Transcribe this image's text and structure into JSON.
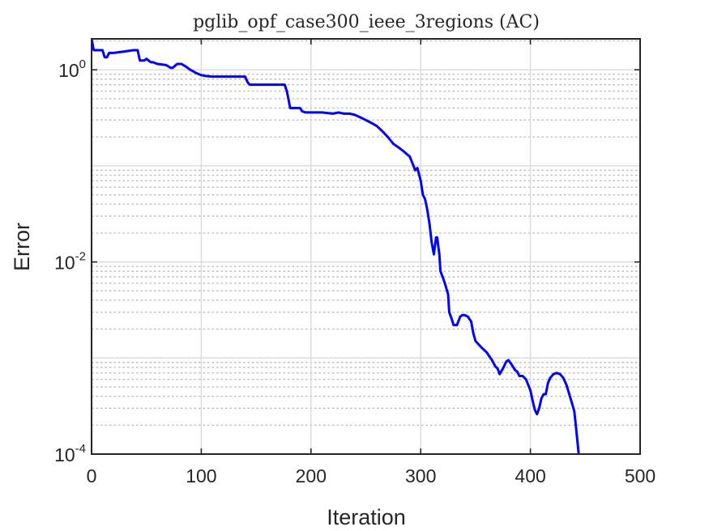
{
  "chart_data": {
    "type": "line",
    "title": "pglib_opf_case300_ieee_3regions (AC)",
    "xlabel": "Iteration",
    "ylabel": "Error",
    "xlim": [
      0,
      500
    ],
    "ylim": [
      0.0001,
      2.1
    ],
    "yscale": "log",
    "grid": true,
    "minor_grid": true,
    "xticks": [
      0,
      100,
      200,
      300,
      400,
      500
    ],
    "xtick_labels": [
      "0",
      "100",
      "200",
      "300",
      "400",
      "500"
    ],
    "yticks": [
      0.0001,
      0.01,
      1
    ],
    "ytick_labels": [
      {
        "base": "10",
        "exp": "-4"
      },
      {
        "base": "10",
        "exp": "-2"
      },
      {
        "base": "10",
        "exp": "0"
      }
    ],
    "series": [
      {
        "color": "#0000ff",
        "x": [
          0,
          2,
          4,
          10,
          12,
          14,
          16,
          18,
          20,
          30,
          38,
          40,
          42,
          44,
          46,
          48,
          50,
          52,
          54,
          56,
          60,
          68,
          72,
          74,
          76,
          78,
          82,
          86,
          90,
          95,
          100,
          105,
          110,
          120,
          130,
          140,
          142,
          144,
          146,
          150,
          160,
          170,
          176,
          178,
          180,
          181,
          185,
          190,
          192,
          195,
          200,
          210,
          220,
          225,
          230,
          235,
          240,
          245,
          250,
          255,
          260,
          265,
          270,
          275,
          280,
          285,
          290,
          292,
          295,
          297,
          300,
          302,
          304,
          306,
          308,
          310,
          312,
          314,
          315,
          317,
          318,
          320,
          322,
          325,
          326,
          328,
          330,
          333,
          336,
          338,
          340,
          343,
          346,
          348,
          350,
          355,
          360,
          365,
          368,
          370,
          372,
          375,
          378,
          380,
          383,
          386,
          388,
          390,
          393,
          396,
          400,
          402,
          404,
          406,
          408,
          410,
          412,
          414,
          416,
          418,
          421,
          424,
          427,
          430,
          433,
          436,
          440,
          442,
          444
        ],
        "y": [
          2.1,
          1.6,
          1.6,
          1.6,
          1.35,
          1.35,
          1.5,
          1.5,
          1.5,
          1.55,
          1.6,
          1.6,
          1.6,
          1.25,
          1.25,
          1.25,
          1.3,
          1.25,
          1.2,
          1.2,
          1.15,
          1.12,
          1.05,
          1.05,
          1.1,
          1.15,
          1.15,
          1.08,
          1.0,
          0.93,
          0.88,
          0.86,
          0.85,
          0.85,
          0.85,
          0.85,
          0.75,
          0.7,
          0.7,
          0.7,
          0.7,
          0.7,
          0.7,
          0.6,
          0.46,
          0.4,
          0.4,
          0.4,
          0.37,
          0.36,
          0.36,
          0.36,
          0.35,
          0.36,
          0.35,
          0.35,
          0.34,
          0.32,
          0.3,
          0.28,
          0.26,
          0.23,
          0.2,
          0.17,
          0.155,
          0.14,
          0.125,
          0.11,
          0.09,
          0.095,
          0.07,
          0.05,
          0.045,
          0.035,
          0.025,
          0.016,
          0.012,
          0.018,
          0.018,
          0.012,
          0.008,
          0.007,
          0.006,
          0.0046,
          0.003,
          0.0026,
          0.0022,
          0.0022,
          0.0027,
          0.0028,
          0.0028,
          0.0027,
          0.0024,
          0.0018,
          0.0015,
          0.0013,
          0.00115,
          0.00095,
          0.00082,
          0.00078,
          0.00068,
          0.00078,
          0.00092,
          0.00095,
          0.00085,
          0.00075,
          0.00072,
          0.00065,
          0.00065,
          0.0006,
          0.00046,
          0.00036,
          0.00029,
          0.00026,
          0.0003,
          0.00038,
          0.00042,
          0.00042,
          0.00055,
          0.00062,
          0.00068,
          0.0007,
          0.00068,
          0.00062,
          0.00052,
          0.0004,
          0.00028,
          0.00017,
          0.0001
        ]
      }
    ]
  }
}
